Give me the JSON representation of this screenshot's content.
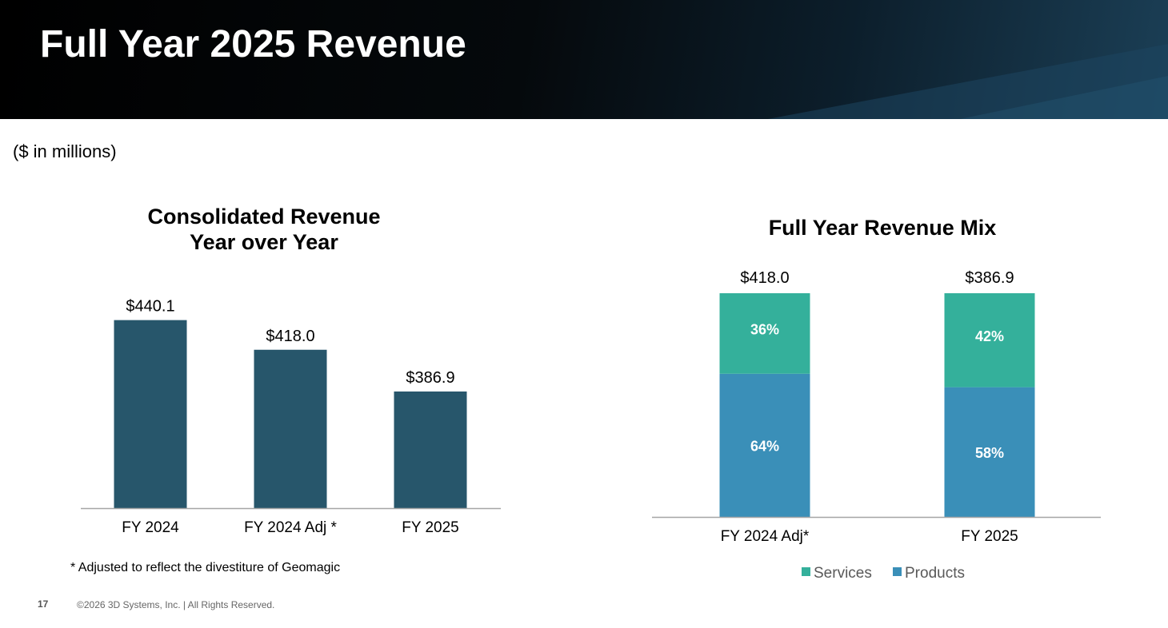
{
  "slide": {
    "title": "Full Year 2025 Revenue",
    "units_note": "($ in millions)",
    "footnote": "* Adjusted to reflect the divestiture of Geomagic",
    "page_number": "17",
    "copyright": "©2026 3D Systems, Inc. | All Rights Reserved."
  },
  "colors": {
    "bar": "#27566b",
    "services": "#34b09b",
    "products": "#3a8fb8",
    "axis": "#a6a6a6"
  },
  "chart_data": [
    {
      "type": "bar",
      "title": [
        "Consolidated Revenue",
        "Year over Year"
      ],
      "categories": [
        "FY 2024",
        "FY 2024 Adj *",
        "FY 2025"
      ],
      "values": [
        440.1,
        418.0,
        386.9
      ],
      "value_labels": [
        "$440.1",
        "$418.0",
        "$386.9"
      ],
      "ylim": [
        300,
        450
      ],
      "ylabel": "",
      "xlabel": "",
      "grid": false
    },
    {
      "type": "stacked_bar_percent",
      "title": "Full Year Revenue Mix",
      "categories": [
        "FY 2024  Adj*",
        "FY 2025"
      ],
      "totals": [
        "$418.0",
        "$386.9"
      ],
      "series": [
        {
          "name": "Products",
          "values": [
            64,
            58
          ],
          "labels": [
            "64%",
            "58%"
          ]
        },
        {
          "name": "Services",
          "values": [
            36,
            42
          ],
          "labels": [
            "36%",
            "42%"
          ]
        }
      ],
      "legend": [
        "Services",
        "Products"
      ],
      "legend_position": "bottom",
      "ylim": [
        0,
        100
      ],
      "grid": false
    }
  ]
}
